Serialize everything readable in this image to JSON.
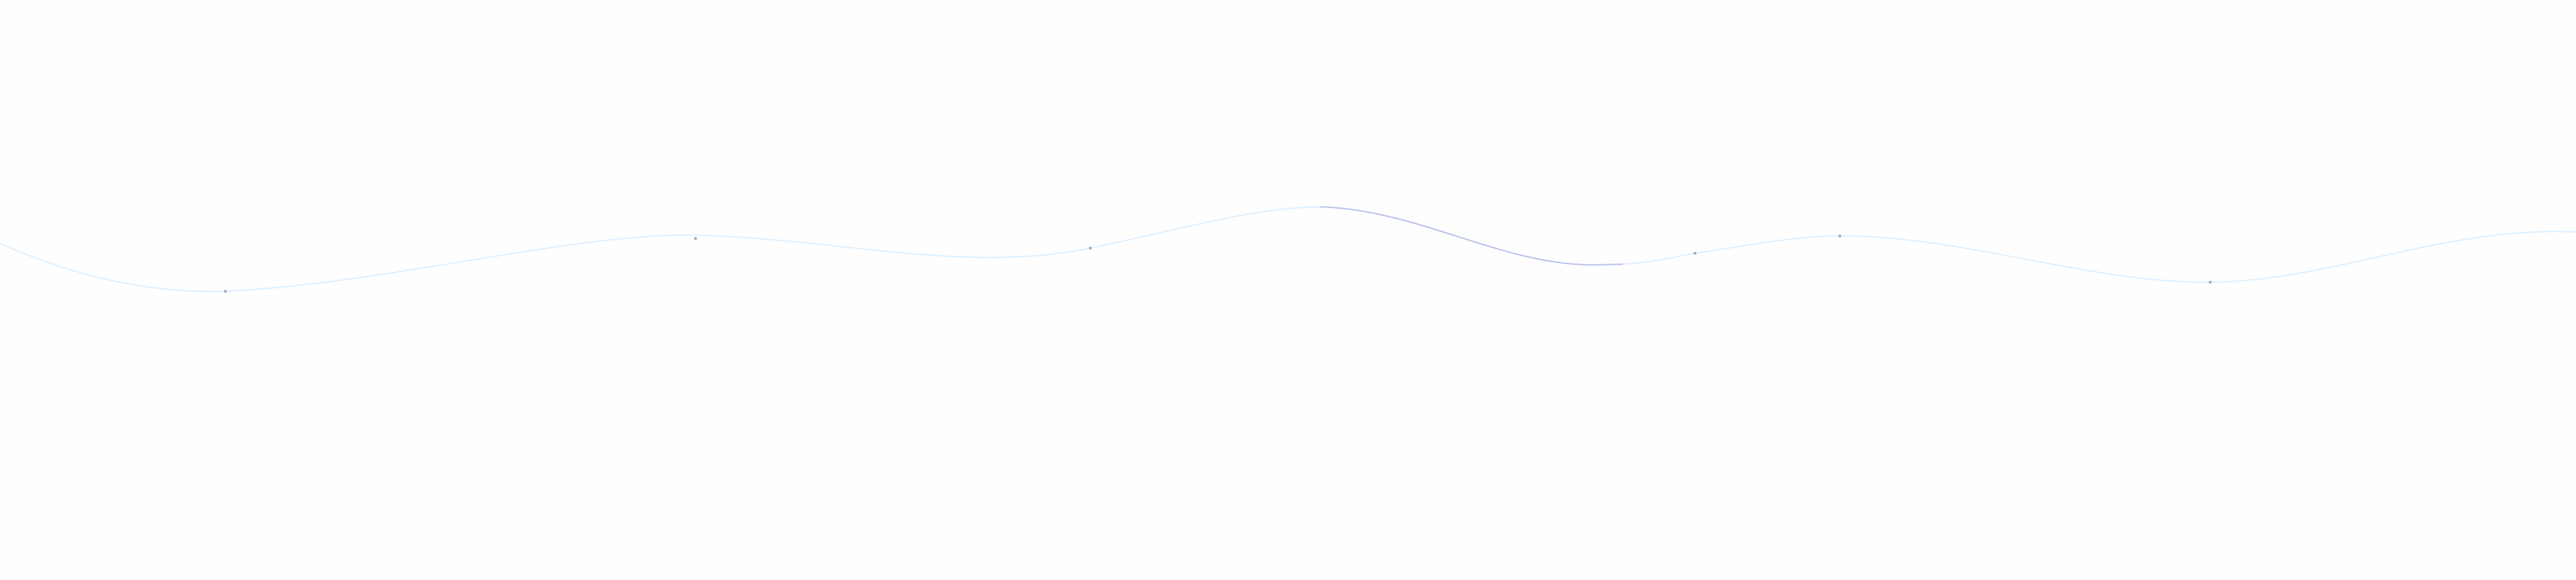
{
  "wave": {
    "line_color": "#dcefff",
    "highlight_color": "#b8c0ea",
    "marker_color": "#a9a9c9",
    "marker_count": 6
  }
}
